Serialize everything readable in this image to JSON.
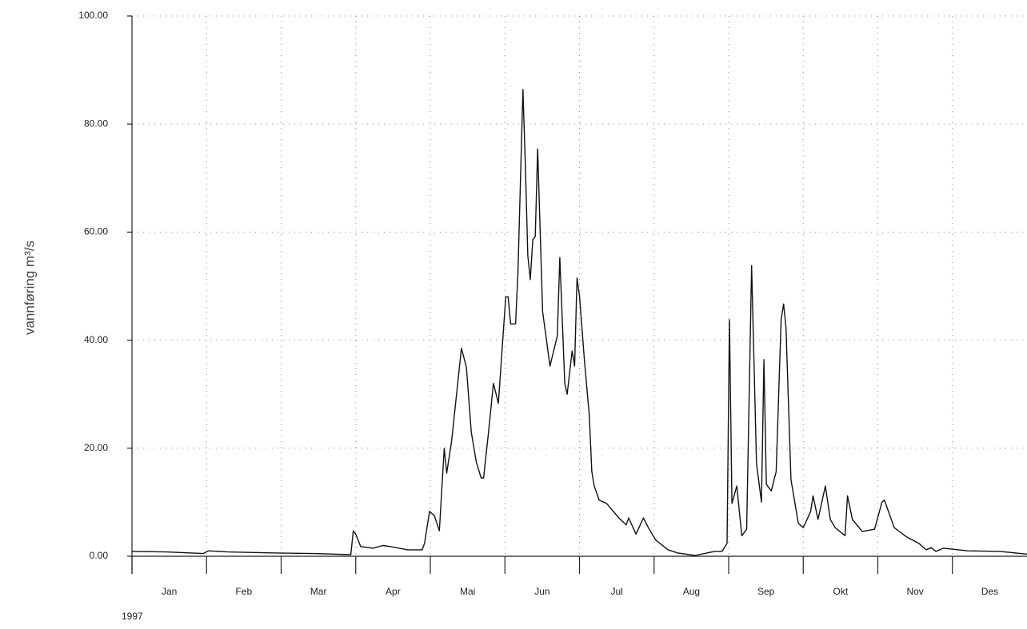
{
  "chart_data": {
    "type": "line",
    "y_label": "vannføring   m³/s",
    "year": "1997",
    "categories": [
      "Jan",
      "Feb",
      "Mar",
      "Apr",
      "Mai",
      "Jun",
      "Jul",
      "Aug",
      "Sep",
      "Okt",
      "Nov",
      "Des"
    ],
    "x": [
      1,
      15,
      30,
      32,
      40,
      60,
      75,
      90,
      91,
      92,
      94,
      99,
      103,
      106,
      113,
      119,
      120,
      122,
      124,
      126,
      128,
      129,
      131,
      135,
      137,
      139,
      141,
      143,
      144,
      146,
      148,
      150,
      153,
      154,
      155,
      157,
      158,
      160,
      161,
      162,
      163,
      164,
      165,
      166,
      168,
      171,
      174,
      175,
      177,
      178,
      180,
      181,
      182,
      183,
      185,
      187,
      188,
      189,
      191,
      194,
      199,
      202,
      203,
      206,
      209,
      211,
      214,
      219,
      223,
      230,
      238,
      241,
      243,
      244,
      245,
      247,
      249,
      251,
      253,
      255,
      257,
      258,
      259,
      261,
      263,
      265,
      266,
      267,
      269,
      272,
      274,
      277,
      278,
      280,
      283,
      285,
      287,
      291,
      292,
      294,
      298,
      303,
      306,
      307,
      311,
      316,
      321,
      324,
      326,
      328,
      331,
      341,
      354,
      365
    ],
    "series": [
      {
        "color": "#111111",
        "values": [
          0.9,
          0.8,
          0.5,
          1.0,
          0.8,
          0.6,
          0.5,
          0.3,
          4.7,
          4.1,
          1.8,
          1.5,
          2.0,
          1.8,
          1.2,
          1.2,
          2.4,
          8.3,
          7.5,
          4.7,
          20,
          15.4,
          21.3,
          38.5,
          35,
          23,
          17.5,
          14.5,
          14.5,
          23,
          32,
          28.3,
          48,
          48,
          43,
          43,
          52.7,
          86.4,
          72,
          55.6,
          51.2,
          58.6,
          59.2,
          75.4,
          45.3,
          35.2,
          40.8,
          55.3,
          32,
          30,
          38,
          35.2,
          51.5,
          48.2,
          36.4,
          26,
          15.7,
          13,
          10.4,
          9.8,
          7.1,
          5.8,
          7.1,
          4.1,
          7.1,
          5.3,
          3.0,
          1.2,
          0.6,
          0.15,
          0.9,
          0.9,
          2.4,
          43.8,
          9.8,
          13,
          3.8,
          5.0,
          53.8,
          17.2,
          10,
          36.4,
          13.3,
          12.1,
          15.7,
          43.8,
          46.7,
          42.3,
          14.2,
          6.1,
          5.3,
          8.3,
          11.2,
          6.8,
          13,
          6.8,
          5.3,
          3.8,
          11.2,
          6.8,
          4.6,
          5.0,
          10,
          10.4,
          5.3,
          3.6,
          2.4,
          1.2,
          1.6,
          0.9,
          1.5,
          1.0,
          0.9,
          0.4
        ]
      }
    ],
    "xlim": [
      1,
      365
    ],
    "ylim": [
      0,
      100
    ],
    "yticks": [
      {
        "value": 0,
        "label": "0.00"
      },
      {
        "value": 20,
        "label": "20.00"
      },
      {
        "value": 40,
        "label": "40.00"
      },
      {
        "value": 60,
        "label": "60.00"
      },
      {
        "value": 80,
        "label": "80.00"
      },
      {
        "value": 100,
        "label": "100.00"
      }
    ],
    "grid": true
  }
}
